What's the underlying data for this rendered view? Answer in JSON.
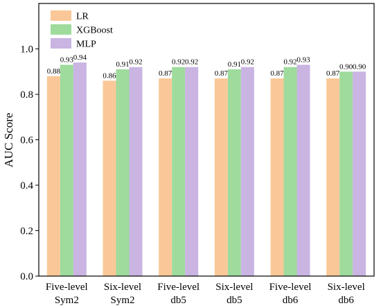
{
  "chart_data": {
    "type": "bar",
    "categories": [
      [
        "Five-level",
        "Sym2"
      ],
      [
        "Six-level",
        "Sym2"
      ],
      [
        "Five-level",
        "db5"
      ],
      [
        "Six-level",
        "db5"
      ],
      [
        "Five-level",
        "db6"
      ],
      [
        "Six-level",
        "db6"
      ]
    ],
    "series": [
      {
        "name": "LR",
        "color": "#FAC898",
        "values": [
          0.88,
          0.86,
          0.87,
          0.87,
          0.87,
          0.87
        ],
        "labels": [
          "0.88",
          "0.86",
          "0.87",
          "0.87",
          "0.87",
          "0.87"
        ]
      },
      {
        "name": "XGBoost",
        "color": "#9EDB9C",
        "values": [
          0.93,
          0.91,
          0.92,
          0.91,
          0.92,
          0.9
        ],
        "labels": [
          "0.93",
          "0.91",
          "0.92",
          "0.91",
          "0.92",
          "0.90"
        ]
      },
      {
        "name": "MLP",
        "color": "#C9B4E2",
        "values": [
          0.94,
          0.92,
          0.92,
          0.92,
          0.93,
          0.9
        ],
        "labels": [
          "0.94",
          "0.92",
          "0.92",
          "0.92",
          "0.93",
          "0.90"
        ]
      }
    ],
    "ylabel": "AUC Score",
    "ylim": [
      0.0,
      1.2
    ],
    "yticks": [
      "0.0",
      "0.2",
      "0.4",
      "0.6",
      "0.8",
      "1.0"
    ],
    "legend_position": "top-left",
    "grid": false
  }
}
